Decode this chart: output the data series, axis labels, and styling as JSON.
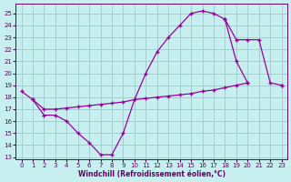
{
  "xlabel": "Windchill (Refroidissement éolien,°C)",
  "bg_color": "#c8efef",
  "grid_color": "#a0cece",
  "line_color": "#990099",
  "curve1_x": [
    0,
    1,
    2,
    3,
    4,
    5,
    6,
    7,
    8,
    9,
    10,
    11,
    12,
    13,
    14,
    15,
    16,
    17,
    18,
    19,
    20,
    21,
    22,
    23
  ],
  "curve1_y": [
    18.5,
    17.8,
    16.5,
    16.5,
    16.0,
    15.0,
    14.2,
    13.2,
    13.2,
    15.0,
    17.8,
    20.0,
    21.8,
    23.0,
    24.0,
    25.0,
    25.2,
    25.0,
    24.5,
    21.0,
    19.2,
    null,
    null,
    null
  ],
  "curve2_x": [
    1,
    2,
    3,
    4,
    5,
    6,
    7,
    8,
    9,
    10,
    11,
    12,
    13,
    14,
    15,
    16,
    17,
    18,
    19,
    20,
    21,
    22,
    23
  ],
  "curve2_y": [
    17.8,
    17.0,
    17.0,
    17.1,
    17.2,
    17.3,
    17.4,
    17.5,
    17.6,
    17.8,
    17.9,
    18.0,
    18.1,
    18.2,
    18.3,
    18.5,
    18.6,
    18.8,
    19.0,
    19.2,
    null,
    null,
    19.0
  ],
  "curve3_x": [
    18,
    19,
    20,
    21,
    22,
    23
  ],
  "curve3_y": [
    24.5,
    22.8,
    22.8,
    22.8,
    19.2,
    19.0
  ],
  "xlim": [
    -0.5,
    23.5
  ],
  "ylim": [
    12.8,
    25.8
  ],
  "yticks": [
    13,
    14,
    15,
    16,
    17,
    18,
    19,
    20,
    21,
    22,
    23,
    24,
    25
  ],
  "xticks": [
    0,
    1,
    2,
    3,
    4,
    5,
    6,
    7,
    8,
    9,
    10,
    11,
    12,
    13,
    14,
    15,
    16,
    17,
    18,
    19,
    20,
    21,
    22,
    23
  ]
}
